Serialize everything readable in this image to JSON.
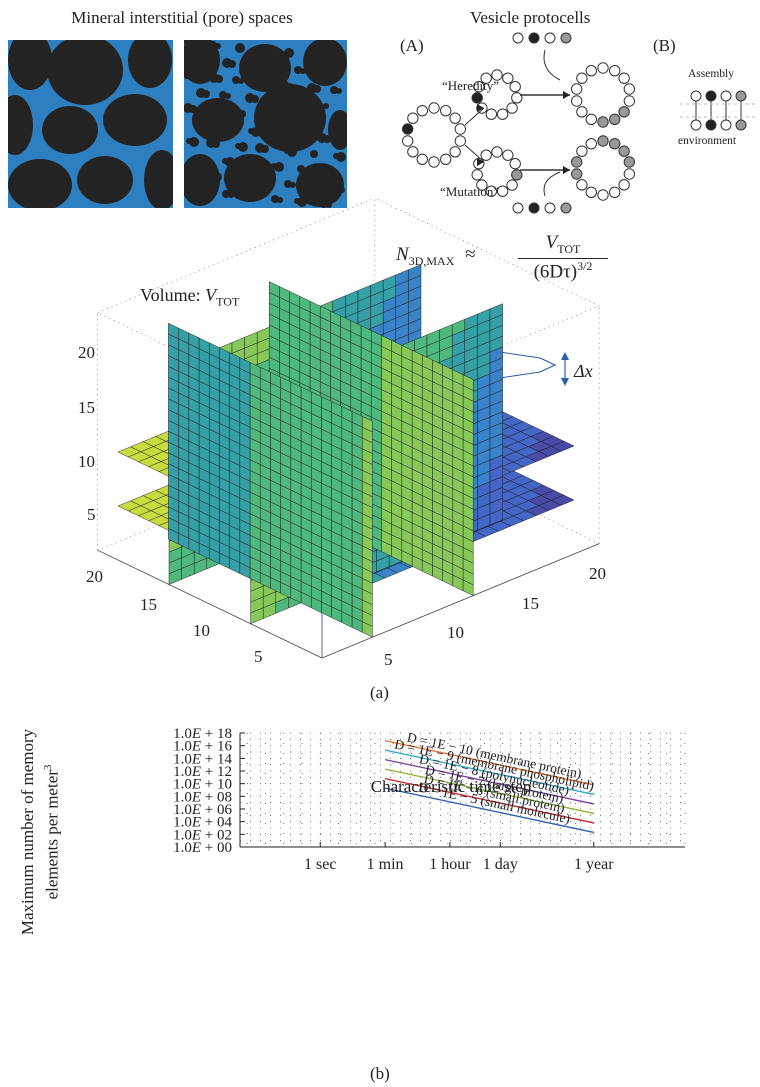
{
  "pores": {
    "title": "Mineral interstitial (pore) spaces",
    "water_color": "#2e7fc0",
    "grain_color": "#232323"
  },
  "vesicles": {
    "title": "Vesicle protocells",
    "panel_a": "(A)",
    "panel_b": "(B)",
    "heredity_label": "“Heredity”",
    "mutation_label": "“Mutation”",
    "assembly_label": "Assembly",
    "environment_label": "environment"
  },
  "volume_plot": {
    "volume_label_prefix": "Volume:",
    "volume_symbol": "V",
    "volume_sub": "TOT",
    "formula_lhs": "N",
    "formula_lhs_sub": "3D,MAX",
    "formula_approx": "≈",
    "formula_num": "V",
    "formula_num_sub": "TOT",
    "formula_den": "(6Dτ)",
    "formula_den_exp": "3/2",
    "delta_label": "Δx",
    "z_ticks": [
      "20",
      "15",
      "10",
      "5"
    ],
    "x_ticks": [
      "20",
      "15",
      "10",
      "5"
    ],
    "y_ticks": [
      "5",
      "10",
      "15",
      "20"
    ],
    "caption": "(a)"
  },
  "chart_data": {
    "type": "line",
    "ylabel_line1": "Maximum number of memory",
    "ylabel_line2": "elements per meter",
    "ylabel_exp": "3",
    "xlabel": "Characteristic time step",
    "y_tick_labels": [
      "1.0E + 18",
      "1.0E + 16",
      "1.0E + 14",
      "1.0E + 12",
      "1.0E + 10",
      "1.0E + 08",
      "1.0E + 06",
      "1.0E + 04",
      "1.0E + 02",
      "1.0E + 00"
    ],
    "x_tick_labels": [
      "1 sec",
      "1 min",
      "1 hour",
      "1 day",
      "1 year"
    ],
    "x_tick_log10_seconds": [
      0,
      1.778,
      3.556,
      4.936,
      7.499
    ],
    "xlim_log10_seconds": [
      -2.2,
      10.0
    ],
    "ylim_log10": [
      0,
      18
    ],
    "grid": true,
    "series": [
      {
        "name": "D = 1E − 10 (membrane protein)",
        "color": "#e8702a",
        "x": [
          1.778,
          7.499
        ],
        "y": [
          16.8,
          9.8
        ]
      },
      {
        "name": "D = 1E − 9 (membrane phospholipid)",
        "color": "#2fa6c8",
        "x": [
          1.778,
          7.499
        ],
        "y": [
          15.3,
          8.3
        ]
      },
      {
        "name": "D = 1E − 8 (polynucleotide)",
        "color": "#7a3f9e",
        "x": [
          1.778,
          7.499
        ],
        "y": [
          13.8,
          6.8
        ]
      },
      {
        "name": "D = 1E − 7 (large protein)",
        "color": "#8db33a",
        "x": [
          1.778,
          7.499
        ],
        "y": [
          12.3,
          5.3
        ]
      },
      {
        "name": "D = 1E − 6 (small protein)",
        "color": "#c2272d",
        "x": [
          1.778,
          7.499
        ],
        "y": [
          10.8,
          3.8
        ]
      },
      {
        "name": "D = 1E − 5 (small molecule)",
        "color": "#2a5fae",
        "x": [
          1.778,
          7.499
        ],
        "y": [
          9.3,
          2.3
        ]
      }
    ],
    "caption": "(b)"
  }
}
